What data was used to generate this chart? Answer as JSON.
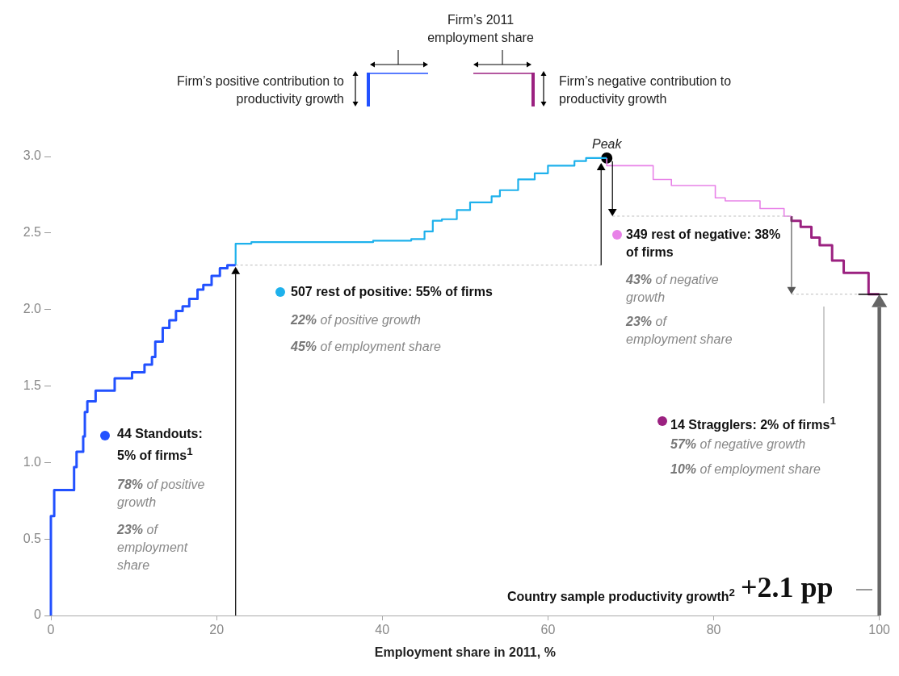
{
  "chart_data": {
    "type": "step",
    "xlabel": "Employment share in 2011, %",
    "xlim": [
      0,
      100
    ],
    "xticks": [
      0,
      20,
      40,
      60,
      80,
      100
    ],
    "ylim": [
      0,
      3
    ],
    "legend": "right",
    "yticks": [
      0,
      {
        "value": 0.5,
        "label": "0.5"
      },
      {
        "value": 1,
        "label": "1.0"
      },
      {
        "value": 1.5,
        "label": "1.5"
      },
      {
        "value": 2,
        "label": "2.0"
      },
      {
        "value": 2.5,
        "label": "2.5"
      },
      {
        "value": 3,
        "label": "3.0"
      }
    ],
    "series": [
      {
        "name": "44 Standouts: 5% of firms$^{1}$",
        "color": "#2251ff",
        "x": [
          0,
          0,
          0.4,
          2.8,
          3.1,
          3.9,
          4.1,
          4.4,
          5.4,
          7.7,
          9.8,
          11.3,
          12.2,
          12.6,
          13.5,
          14.3,
          15.1,
          15.9,
          16.7,
          17.7,
          18.4,
          19.4,
          20.4,
          21.3,
          22.3
        ],
        "values": [
          0,
          0.43,
          0.65,
          0.82,
          0.97,
          1.07,
          1.17,
          1.33,
          1.4,
          1.47,
          1.55,
          1.59,
          1.64,
          1.69,
          1.79,
          1.88,
          1.93,
          1.99,
          2.02,
          2.07,
          2.13,
          2.16,
          2.22,
          2.27,
          2.29
        ]
      },
      {
        "name": "507 rest of positive: 55% of firms",
        "color": "#1eb1ec",
        "x": [
          22.3,
          24.2,
          38.9,
          43.5,
          45.1,
          46.1,
          47.2,
          49,
          50.6,
          53.2,
          54.2,
          56.4,
          58.4,
          60,
          63.2,
          64.6,
          67.1
        ],
        "values": [
          2.29,
          2.43,
          2.44,
          2.45,
          2.46,
          2.51,
          2.58,
          2.59,
          2.65,
          2.7,
          2.74,
          2.78,
          2.85,
          2.89,
          2.94,
          2.97,
          2.99
        ]
      },
      {
        "name": "349 rest of negative: 38% of firms",
        "color": "#e882e8",
        "x": [
          67.1,
          71,
          72.7,
          74.9,
          77.3,
          80.2,
          81.4,
          85.6,
          88.5,
          89.4
        ],
        "values": [
          2.99,
          2.94,
          2.94,
          2.85,
          2.81,
          2.81,
          2.73,
          2.71,
          2.66,
          2.61
        ]
      },
      {
        "name": "14 Stragglers: 2% of firms$^{1}$",
        "color": "#9b2180",
        "x": [
          89.4,
          90.5,
          91.8,
          92.8,
          94.3,
          95.7,
          98.7,
          100
        ],
        "values": [
          2.61,
          2.58,
          2.54,
          2.47,
          2.42,
          2.32,
          2.24,
          2.1
        ]
      },
      {
        "type": "scatter",
        "color": "#000000",
        "marker": "circle",
        "x": [
          67.1
        ],
        "values": [
          2.99
        ]
      }
    ],
    "annotations": [
      "Firm’s 2011 employment share",
      "Firm’s positive contribution to productivity growth",
      "Firm’s negative contribution to productivity growth",
      {
        "text": "Peak",
        "x": 67.1,
        "y": 2.99
      },
      "78% of positive growth",
      "23% of employment share",
      "22% of positive growth",
      "45% of employment share",
      "43% of negative growth",
      "23% of employment share",
      "57% of negative growth",
      "10% of employment share",
      "Country sample productivity growth$^{2}$",
      "+2.1 pp"
    ]
  }
}
